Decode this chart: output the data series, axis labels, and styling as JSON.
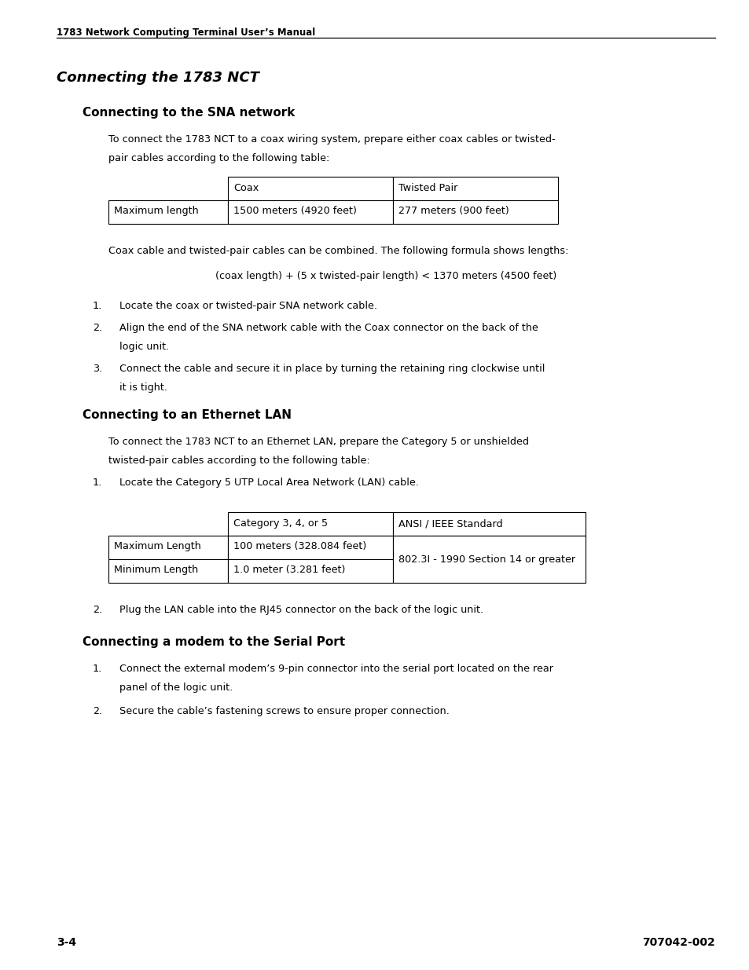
{
  "page_width": 9.54,
  "page_height": 12.35,
  "bg_color": "#ffffff",
  "header_text": "1783 Network Computing Terminal User’s Manual",
  "footer_left": "3-4",
  "footer_right": "707042-002",
  "main_title": "Connecting the 1783 NCT",
  "section1_title": "Connecting to the SNA network",
  "section1_intro_line1": "To connect the 1783 NCT to a coax wiring system, prepare either coax cables or twisted-",
  "section1_intro_line2": "pair cables according to the following table:",
  "table1_headers": [
    "",
    "Coax",
    "Twisted Pair"
  ],
  "table1_row": [
    "Maximum length",
    "1500 meters (4920 feet)",
    "277 meters (900 feet)"
  ],
  "section1_combined": "Coax cable and twisted-pair cables can be combined. The following formula shows lengths:",
  "section1_formula": "(coax length) + (5 x twisted-pair length) < 1370 meters (4500 feet)",
  "section1_items": [
    [
      "Locate the coax or twisted-pair SNA network cable."
    ],
    [
      "Align the end of the SNA network cable with the Coax connector on the back of the",
      "logic unit."
    ],
    [
      "Connect the cable and secure it in place by turning the retaining ring clockwise until",
      "it is tight."
    ]
  ],
  "section2_title": "Connecting to an Ethernet LAN",
  "section2_intro_line1": "To connect the 1783 NCT to an Ethernet LAN, prepare the Category 5 or unshielded",
  "section2_intro_line2": "twisted-pair cables according to the following table:",
  "section2_item1": "Locate the Category 5 UTP Local Area Network (LAN) cable.",
  "table2_headers": [
    "",
    "Category 3, 4, or 5",
    "ANSI / IEEE Standard"
  ],
  "table2_rows": [
    [
      "Maximum Length",
      "100 meters (328.084 feet)",
      "802.3I - 1990 Section 14 or greater"
    ],
    [
      "Minimum Length",
      "1.0 meter (3.281 feet)",
      ""
    ]
  ],
  "section2_item2": "Plug the LAN cable into the RJ45 connector on the back of the logic unit.",
  "section3_title": "Connecting a modem to the Serial Port",
  "section3_items": [
    [
      "Connect the external modem’s 9-pin connector into the serial port located on the rear",
      "panel of the logic unit."
    ],
    [
      "Secure the cable’s fastening screws to ensure proper connection."
    ]
  ]
}
